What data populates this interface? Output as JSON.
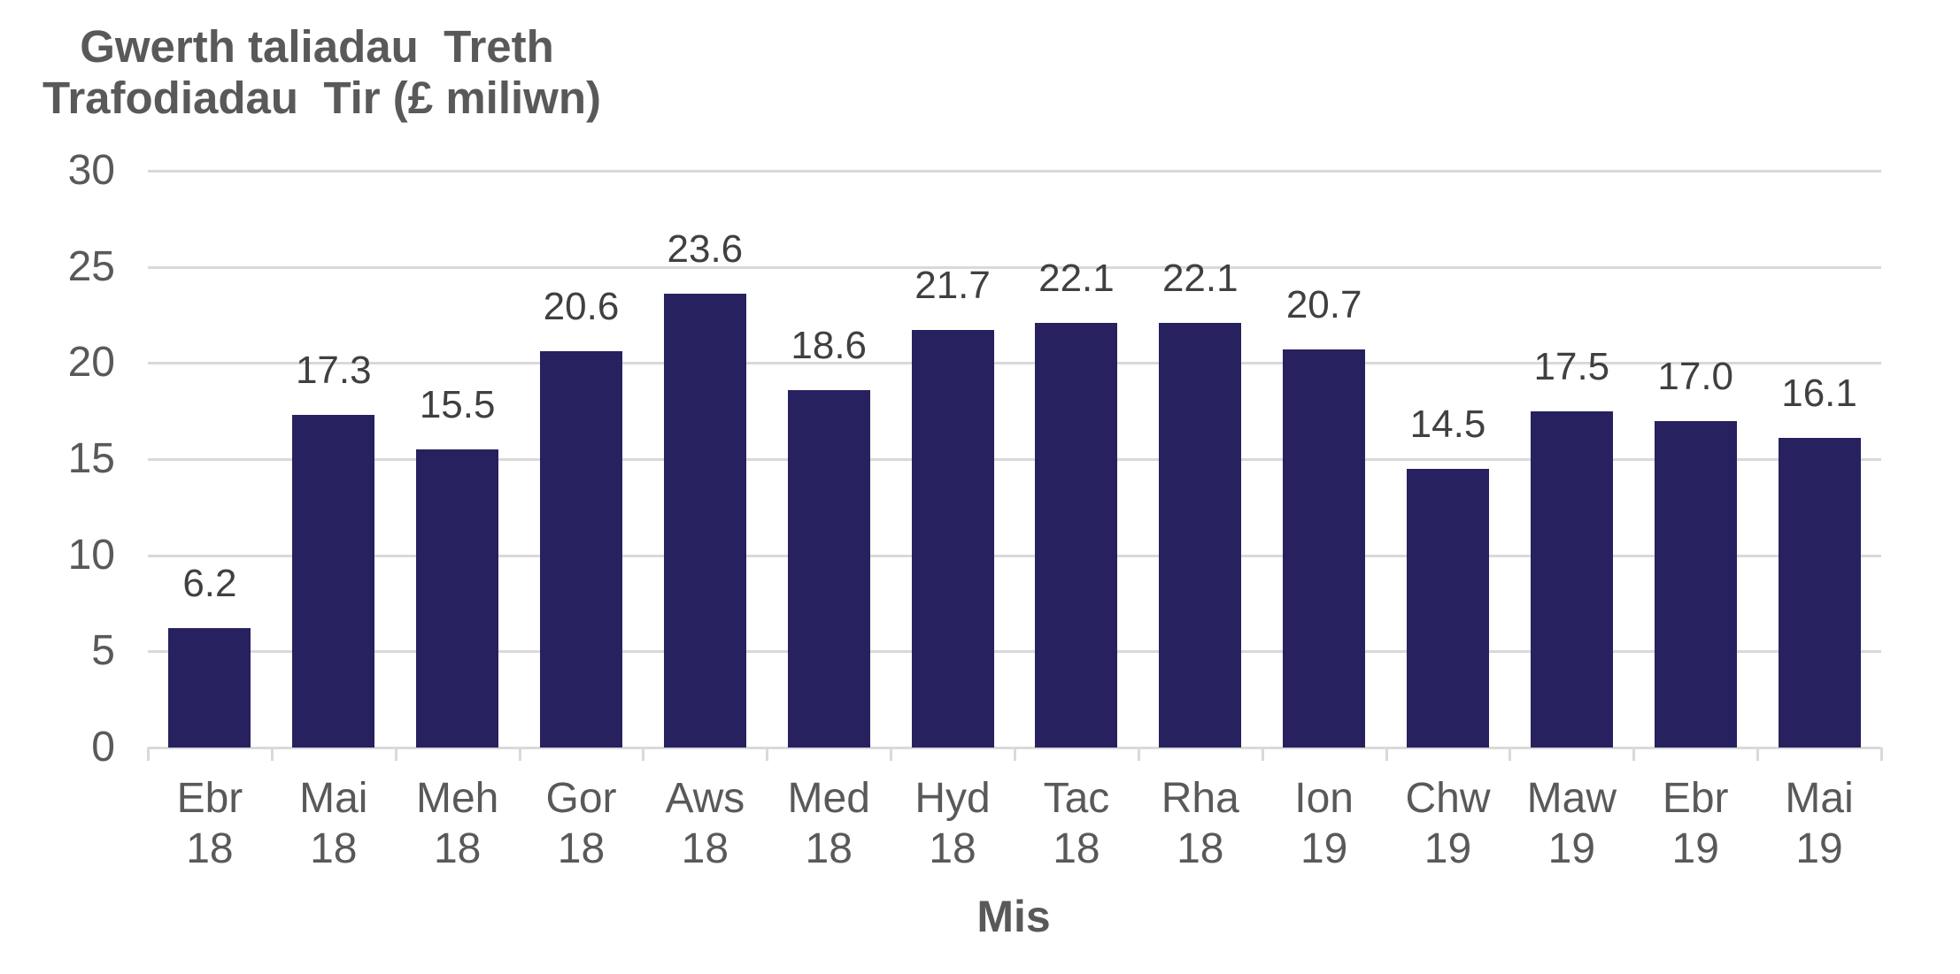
{
  "chart": {
    "title_line1": "Gwerth taliadau  Treth",
    "title_line2": "Trafodiadau  Tir (£ miliwn)",
    "x_axis_title": "Mis"
  },
  "chart_data": {
    "type": "bar",
    "title": "Gwerth taliadau Treth Trafodiadau Tir (£ miliwn)",
    "xlabel": "Mis",
    "ylabel": "Gwerth taliadau Treth Trafodiadau Tir (£ miliwn)",
    "categories": [
      {
        "month": "Ebr",
        "year": "18"
      },
      {
        "month": "Mai",
        "year": "18"
      },
      {
        "month": "Meh",
        "year": "18"
      },
      {
        "month": "Gor",
        "year": "18"
      },
      {
        "month": "Aws",
        "year": "18"
      },
      {
        "month": "Med",
        "year": "18"
      },
      {
        "month": "Hyd",
        "year": "18"
      },
      {
        "month": "Tac",
        "year": "18"
      },
      {
        "month": "Rha",
        "year": "18"
      },
      {
        "month": "Ion",
        "year": "19"
      },
      {
        "month": "Chw",
        "year": "19"
      },
      {
        "month": "Maw",
        "year": "19"
      },
      {
        "month": "Ebr",
        "year": "19"
      },
      {
        "month": "Mai",
        "year": "19"
      }
    ],
    "values": [
      6.2,
      17.3,
      15.5,
      20.6,
      23.6,
      18.6,
      21.7,
      22.1,
      22.1,
      20.7,
      14.5,
      17.5,
      17.0,
      16.1
    ],
    "data_labels": [
      "6.2",
      "17.3",
      "15.5",
      "20.6",
      "23.6",
      "18.6",
      "21.7",
      "22.1",
      "22.1",
      "20.7",
      "14.5",
      "17.5",
      "17.0",
      "16.1"
    ],
    "ylim": [
      0,
      30
    ],
    "yticks": [
      0,
      5,
      10,
      15,
      20,
      25,
      30
    ],
    "grid": "horizontal-only",
    "legend": "none",
    "colors": {
      "bar_fill": "#272160",
      "gridline": "#D9D9D9",
      "axis_text": "#595959",
      "data_label_text": "#404040",
      "title_text": "#595959",
      "background": "#FFFFFF"
    }
  }
}
